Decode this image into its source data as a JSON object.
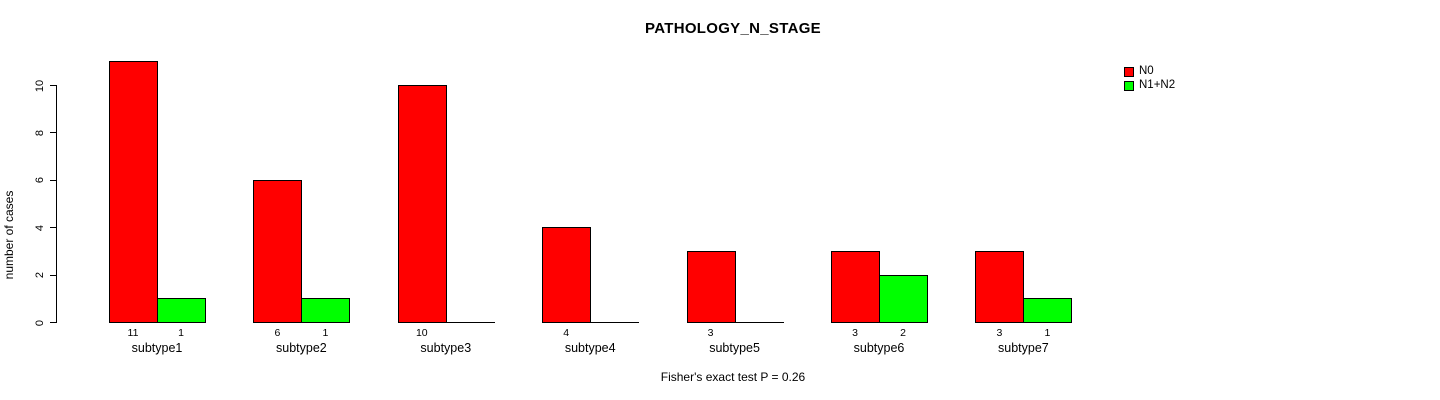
{
  "chart_data": {
    "type": "bar",
    "title": "PATHOLOGY_N_STAGE",
    "ylabel": "number of cases",
    "xlabel": "",
    "caption": "Fisher's exact test P = 0.26",
    "categories": [
      "subtype1",
      "subtype2",
      "subtype3",
      "subtype4",
      "subtype5",
      "subtype6",
      "subtype7"
    ],
    "series": [
      {
        "name": "N0",
        "color": "#ff0000",
        "values": [
          11,
          6,
          10,
          4,
          3,
          3,
          3
        ]
      },
      {
        "name": "N1+N2",
        "color": "#00ff00",
        "values": [
          1,
          1,
          0,
          0,
          0,
          2,
          1
        ]
      }
    ],
    "bar_value_labels": [
      [
        "11",
        "1"
      ],
      [
        "6",
        "1"
      ],
      [
        "10",
        ""
      ],
      [
        "4",
        ""
      ],
      [
        "3",
        ""
      ],
      [
        "3",
        "2"
      ],
      [
        "3",
        "1"
      ]
    ],
    "yticks": [
      0,
      2,
      4,
      6,
      8,
      10
    ],
    "ylim": [
      0,
      11
    ],
    "grid": false,
    "legend_position": "top-right",
    "colors": {
      "background": "#ffffff",
      "axis": "#000000",
      "text": "#000000"
    }
  }
}
